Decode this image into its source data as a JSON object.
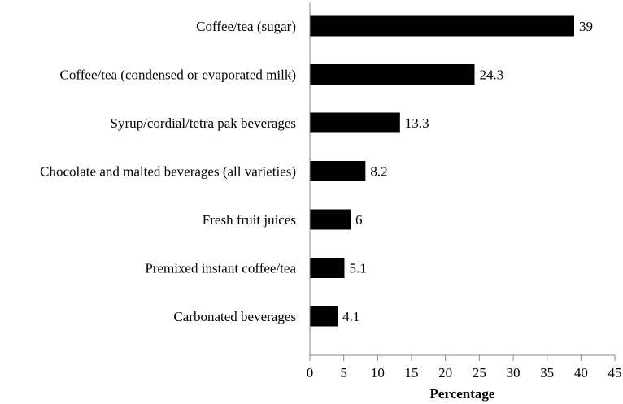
{
  "chart_data": {
    "type": "bar",
    "orientation": "horizontal",
    "title": "",
    "xlabel": "Percentage",
    "ylabel": "",
    "categories": [
      "Coffee/tea (sugar)",
      "Coffee/tea (condensed or evaporated milk)",
      "Syrup/cordial/tetra pak beverages",
      "Chocolate and malted beverages (all varieties)",
      "Fresh fruit juices",
      "Premixed instant coffee/tea",
      "Carbonated beverages"
    ],
    "values": [
      39,
      24.3,
      13.3,
      8.2,
      6,
      5.1,
      4.1
    ],
    "value_labels": [
      "39",
      "24.3",
      "13.3",
      "8.2",
      "6",
      "5.1",
      "4.1"
    ],
    "xlim": [
      0,
      45
    ],
    "xticks": [
      0,
      5,
      10,
      15,
      20,
      25,
      30,
      35,
      40,
      45
    ],
    "grid": false,
    "legend": "none",
    "bar_color": "#000000"
  }
}
